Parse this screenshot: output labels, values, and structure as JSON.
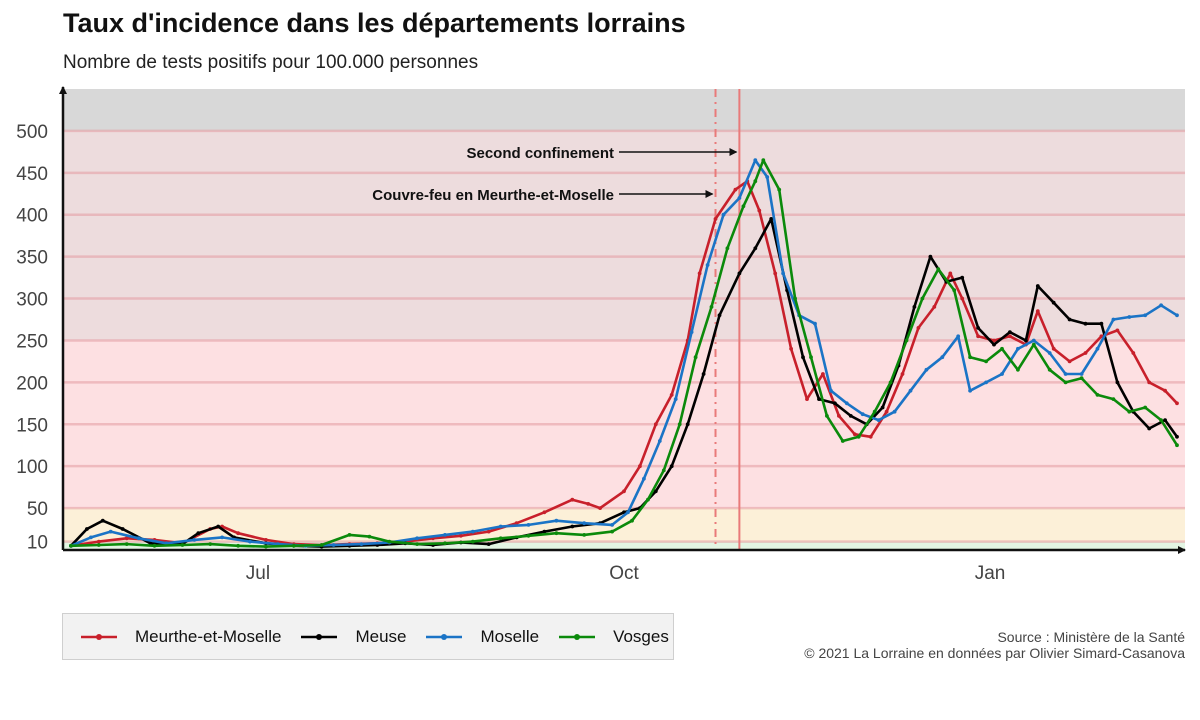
{
  "header": {
    "title": "Taux d'incidence dans les départements lorrains",
    "subtitle": "Nombre de tests positifs pour 100.000 personnes"
  },
  "legend": {
    "items": [
      {
        "label": "Meurthe-et-Moselle",
        "color": "#c8202b"
      },
      {
        "label": "Meuse",
        "color": "#000000"
      },
      {
        "label": "Moselle",
        "color": "#1b74c6"
      },
      {
        "label": "Vosges",
        "color": "#0b8a0b"
      }
    ]
  },
  "footer": {
    "source": "Source : Ministère de la Santé",
    "credit": "© 2021 La Lorraine en données par Olivier Simard-Casanova"
  },
  "chart_data": {
    "type": "line",
    "title": "Taux d'incidence dans les départements lorrains",
    "subtitle": "Nombre de tests positifs pour 100.000 personnes",
    "xlabel": "",
    "ylabel": "",
    "x_ticks": [
      {
        "label": "Jul",
        "date": "2020-07-01"
      },
      {
        "label": "Oct",
        "date": "2020-10-01"
      },
      {
        "label": "Jan",
        "date": "2021-01-01"
      }
    ],
    "xlim": [
      "2020-05-13",
      "2021-02-19"
    ],
    "y_ticks": [
      10,
      50,
      100,
      150,
      200,
      250,
      300,
      350,
      400,
      450,
      500
    ],
    "ylim": [
      0,
      550
    ],
    "bands": [
      {
        "from": 0,
        "to": 10,
        "color": "#e3f5e3"
      },
      {
        "from": 10,
        "to": 50,
        "color": "#fcf0d8"
      },
      {
        "from": 50,
        "to": 250,
        "color": "#fde0e2"
      },
      {
        "from": 250,
        "to": 500,
        "color": "#eddcdd"
      },
      {
        "from": 500,
        "to": 550,
        "color": "#d8d8d8"
      }
    ],
    "events": [
      {
        "date": "2020-10-24",
        "label": "Couvre-feu en Meurthe-et-Moselle",
        "style": "dashdot",
        "color": "#e97a7a"
      },
      {
        "date": "2020-10-30",
        "label": "Second confinement",
        "style": "solid",
        "color": "#e97a7a"
      }
    ],
    "grid": true,
    "legend_position": "bottom-left",
    "series": [
      {
        "name": "Meurthe-et-Moselle",
        "color": "#c8202b",
        "points": [
          [
            "2020-05-15",
            5
          ],
          [
            "2020-05-22",
            10
          ],
          [
            "2020-05-29",
            14
          ],
          [
            "2020-06-05",
            12
          ],
          [
            "2020-06-12",
            8
          ],
          [
            "2020-06-19",
            25
          ],
          [
            "2020-06-22",
            28
          ],
          [
            "2020-06-26",
            20
          ],
          [
            "2020-07-03",
            12
          ],
          [
            "2020-07-10",
            7
          ],
          [
            "2020-07-17",
            6
          ],
          [
            "2020-07-24",
            7
          ],
          [
            "2020-07-31",
            8
          ],
          [
            "2020-08-07",
            10
          ],
          [
            "2020-08-14",
            14
          ],
          [
            "2020-08-21",
            17
          ],
          [
            "2020-08-28",
            22
          ],
          [
            "2020-09-04",
            32
          ],
          [
            "2020-09-11",
            45
          ],
          [
            "2020-09-18",
            60
          ],
          [
            "2020-09-22",
            55
          ],
          [
            "2020-09-25",
            50
          ],
          [
            "2020-10-01",
            70
          ],
          [
            "2020-10-05",
            100
          ],
          [
            "2020-10-09",
            150
          ],
          [
            "2020-10-13",
            185
          ],
          [
            "2020-10-17",
            250
          ],
          [
            "2020-10-20",
            330
          ],
          [
            "2020-10-24",
            395
          ],
          [
            "2020-10-29",
            430
          ],
          [
            "2020-11-01",
            440
          ],
          [
            "2020-11-04",
            405
          ],
          [
            "2020-11-08",
            330
          ],
          [
            "2020-11-12",
            240
          ],
          [
            "2020-11-16",
            180
          ],
          [
            "2020-11-20",
            210
          ],
          [
            "2020-11-24",
            160
          ],
          [
            "2020-11-28",
            138
          ],
          [
            "2020-12-02",
            135
          ],
          [
            "2020-12-06",
            165
          ],
          [
            "2020-12-10",
            210
          ],
          [
            "2020-12-14",
            265
          ],
          [
            "2020-12-18",
            290
          ],
          [
            "2020-12-22",
            330
          ],
          [
            "2020-12-25",
            300
          ],
          [
            "2020-12-29",
            255
          ],
          [
            "2021-01-02",
            250
          ],
          [
            "2021-01-06",
            255
          ],
          [
            "2021-01-10",
            245
          ],
          [
            "2021-01-13",
            285
          ],
          [
            "2021-01-17",
            240
          ],
          [
            "2021-01-21",
            225
          ],
          [
            "2021-01-25",
            235
          ],
          [
            "2021-01-29",
            255
          ],
          [
            "2021-02-02",
            262
          ],
          [
            "2021-02-06",
            235
          ],
          [
            "2021-02-10",
            200
          ],
          [
            "2021-02-14",
            190
          ],
          [
            "2021-02-17",
            175
          ]
        ]
      },
      {
        "name": "Meuse",
        "color": "#000000",
        "points": [
          [
            "2020-05-15",
            5
          ],
          [
            "2020-05-19",
            25
          ],
          [
            "2020-05-23",
            35
          ],
          [
            "2020-05-28",
            25
          ],
          [
            "2020-06-04",
            8
          ],
          [
            "2020-06-12",
            7
          ],
          [
            "2020-06-16",
            20
          ],
          [
            "2020-06-21",
            28
          ],
          [
            "2020-06-25",
            15
          ],
          [
            "2020-07-03",
            8
          ],
          [
            "2020-07-10",
            5
          ],
          [
            "2020-07-17",
            4
          ],
          [
            "2020-07-24",
            5
          ],
          [
            "2020-07-31",
            6
          ],
          [
            "2020-08-07",
            8
          ],
          [
            "2020-08-14",
            6
          ],
          [
            "2020-08-21",
            9
          ],
          [
            "2020-08-28",
            7
          ],
          [
            "2020-09-04",
            15
          ],
          [
            "2020-09-11",
            22
          ],
          [
            "2020-09-18",
            28
          ],
          [
            "2020-09-25",
            32
          ],
          [
            "2020-10-01",
            45
          ],
          [
            "2020-10-05",
            50
          ],
          [
            "2020-10-09",
            70
          ],
          [
            "2020-10-13",
            100
          ],
          [
            "2020-10-17",
            150
          ],
          [
            "2020-10-21",
            210
          ],
          [
            "2020-10-25",
            280
          ],
          [
            "2020-10-30",
            330
          ],
          [
            "2020-11-03",
            360
          ],
          [
            "2020-11-07",
            395
          ],
          [
            "2020-11-11",
            310
          ],
          [
            "2020-11-15",
            230
          ],
          [
            "2020-11-19",
            180
          ],
          [
            "2020-11-23",
            175
          ],
          [
            "2020-11-27",
            160
          ],
          [
            "2020-12-01",
            150
          ],
          [
            "2020-12-05",
            170
          ],
          [
            "2020-12-09",
            220
          ],
          [
            "2020-12-13",
            290
          ],
          [
            "2020-12-17",
            350
          ],
          [
            "2020-12-21",
            320
          ],
          [
            "2020-12-25",
            325
          ],
          [
            "2020-12-29",
            265
          ],
          [
            "2021-01-02",
            245
          ],
          [
            "2021-01-06",
            260
          ],
          [
            "2021-01-10",
            250
          ],
          [
            "2021-01-13",
            315
          ],
          [
            "2021-01-17",
            295
          ],
          [
            "2021-01-21",
            275
          ],
          [
            "2021-01-25",
            270
          ],
          [
            "2021-01-29",
            270
          ],
          [
            "2021-02-02",
            200
          ],
          [
            "2021-02-06",
            165
          ],
          [
            "2021-02-10",
            145
          ],
          [
            "2021-02-14",
            155
          ],
          [
            "2021-02-17",
            135
          ]
        ]
      },
      {
        "name": "Moselle",
        "color": "#1b74c6",
        "points": [
          [
            "2020-05-15",
            5
          ],
          [
            "2020-05-20",
            15
          ],
          [
            "2020-05-25",
            22
          ],
          [
            "2020-06-01",
            14
          ],
          [
            "2020-06-08",
            8
          ],
          [
            "2020-06-15",
            12
          ],
          [
            "2020-06-22",
            15
          ],
          [
            "2020-06-29",
            10
          ],
          [
            "2020-07-06",
            7
          ],
          [
            "2020-07-13",
            5
          ],
          [
            "2020-07-20",
            6
          ],
          [
            "2020-07-27",
            7
          ],
          [
            "2020-08-03",
            9
          ],
          [
            "2020-08-10",
            14
          ],
          [
            "2020-08-17",
            18
          ],
          [
            "2020-08-24",
            22
          ],
          [
            "2020-08-31",
            28
          ],
          [
            "2020-09-07",
            30
          ],
          [
            "2020-09-14",
            35
          ],
          [
            "2020-09-21",
            32
          ],
          [
            "2020-09-28",
            30
          ],
          [
            "2020-10-02",
            45
          ],
          [
            "2020-10-06",
            85
          ],
          [
            "2020-10-10",
            130
          ],
          [
            "2020-10-14",
            180
          ],
          [
            "2020-10-18",
            260
          ],
          [
            "2020-10-22",
            340
          ],
          [
            "2020-10-26",
            400
          ],
          [
            "2020-10-30",
            420
          ],
          [
            "2020-11-03",
            465
          ],
          [
            "2020-11-06",
            445
          ],
          [
            "2020-11-10",
            330
          ],
          [
            "2020-11-14",
            280
          ],
          [
            "2020-11-18",
            270
          ],
          [
            "2020-11-22",
            190
          ],
          [
            "2020-11-26",
            175
          ],
          [
            "2020-11-30",
            162
          ],
          [
            "2020-12-04",
            155
          ],
          [
            "2020-12-08",
            165
          ],
          [
            "2020-12-12",
            190
          ],
          [
            "2020-12-16",
            215
          ],
          [
            "2020-12-20",
            230
          ],
          [
            "2020-12-24",
            255
          ],
          [
            "2020-12-27",
            190
          ],
          [
            "2020-12-31",
            200
          ],
          [
            "2021-01-04",
            210
          ],
          [
            "2021-01-08",
            240
          ],
          [
            "2021-01-12",
            250
          ],
          [
            "2021-01-16",
            235
          ],
          [
            "2021-01-20",
            210
          ],
          [
            "2021-01-24",
            210
          ],
          [
            "2021-01-28",
            240
          ],
          [
            "2021-02-01",
            275
          ],
          [
            "2021-02-05",
            278
          ],
          [
            "2021-02-09",
            280
          ],
          [
            "2021-02-13",
            292
          ],
          [
            "2021-02-17",
            280
          ]
        ]
      },
      {
        "name": "Vosges",
        "color": "#0b8a0b",
        "points": [
          [
            "2020-05-15",
            5
          ],
          [
            "2020-05-22",
            6
          ],
          [
            "2020-05-29",
            7
          ],
          [
            "2020-06-05",
            5
          ],
          [
            "2020-06-12",
            6
          ],
          [
            "2020-06-19",
            7
          ],
          [
            "2020-06-26",
            5
          ],
          [
            "2020-07-03",
            4
          ],
          [
            "2020-07-10",
            5
          ],
          [
            "2020-07-17",
            6
          ],
          [
            "2020-07-24",
            18
          ],
          [
            "2020-07-29",
            16
          ],
          [
            "2020-08-03",
            10
          ],
          [
            "2020-08-10",
            7
          ],
          [
            "2020-08-17",
            8
          ],
          [
            "2020-08-24",
            10
          ],
          [
            "2020-08-31",
            14
          ],
          [
            "2020-09-07",
            17
          ],
          [
            "2020-09-14",
            20
          ],
          [
            "2020-09-21",
            18
          ],
          [
            "2020-09-28",
            22
          ],
          [
            "2020-10-03",
            35
          ],
          [
            "2020-10-07",
            60
          ],
          [
            "2020-10-11",
            95
          ],
          [
            "2020-10-15",
            150
          ],
          [
            "2020-10-19",
            230
          ],
          [
            "2020-10-23",
            290
          ],
          [
            "2020-10-27",
            360
          ],
          [
            "2020-10-31",
            410
          ],
          [
            "2020-11-03",
            440
          ],
          [
            "2020-11-05",
            465
          ],
          [
            "2020-11-09",
            430
          ],
          [
            "2020-11-13",
            300
          ],
          [
            "2020-11-17",
            230
          ],
          [
            "2020-11-21",
            160
          ],
          [
            "2020-11-25",
            130
          ],
          [
            "2020-11-29",
            135
          ],
          [
            "2020-12-03",
            165
          ],
          [
            "2020-12-07",
            200
          ],
          [
            "2020-12-11",
            250
          ],
          [
            "2020-12-15",
            300
          ],
          [
            "2020-12-19",
            335
          ],
          [
            "2020-12-23",
            310
          ],
          [
            "2020-12-27",
            230
          ],
          [
            "2020-12-31",
            225
          ],
          [
            "2021-01-04",
            240
          ],
          [
            "2021-01-08",
            215
          ],
          [
            "2021-01-12",
            245
          ],
          [
            "2021-01-16",
            215
          ],
          [
            "2021-01-20",
            200
          ],
          [
            "2021-01-24",
            205
          ],
          [
            "2021-01-28",
            185
          ],
          [
            "2021-02-01",
            180
          ],
          [
            "2021-02-05",
            165
          ],
          [
            "2021-02-09",
            170
          ],
          [
            "2021-02-13",
            155
          ],
          [
            "2021-02-17",
            125
          ]
        ]
      }
    ]
  }
}
